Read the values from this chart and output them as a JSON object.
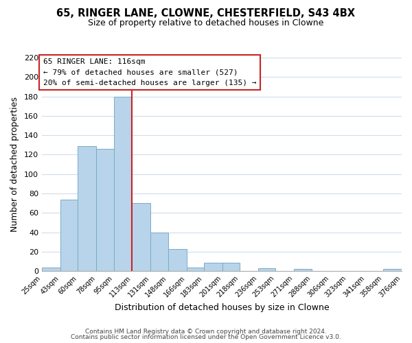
{
  "title": "65, RINGER LANE, CLOWNE, CHESTERFIELD, S43 4BX",
  "subtitle": "Size of property relative to detached houses in Clowne",
  "xlabel": "Distribution of detached houses by size in Clowne",
  "ylabel": "Number of detached properties",
  "bar_color": "#b8d4ea",
  "bar_edge_color": "#7aaac8",
  "vline_x": 113,
  "vline_color": "#cc2222",
  "bin_edges": [
    25,
    43,
    60,
    78,
    95,
    113,
    131,
    148,
    166,
    183,
    201,
    218,
    236,
    253,
    271,
    288,
    306,
    323,
    341,
    358,
    376
  ],
  "bar_heights": [
    4,
    74,
    129,
    126,
    180,
    70,
    40,
    23,
    4,
    9,
    9,
    0,
    3,
    0,
    2,
    0,
    0,
    0,
    0,
    2
  ],
  "tick_labels": [
    "25sqm",
    "43sqm",
    "60sqm",
    "78sqm",
    "95sqm",
    "113sqm",
    "131sqm",
    "148sqm",
    "166sqm",
    "183sqm",
    "201sqm",
    "218sqm",
    "236sqm",
    "253sqm",
    "271sqm",
    "288sqm",
    "306sqm",
    "323sqm",
    "341sqm",
    "358sqm",
    "376sqm"
  ],
  "ylim": [
    0,
    220
  ],
  "yticks": [
    0,
    20,
    40,
    60,
    80,
    100,
    120,
    140,
    160,
    180,
    200,
    220
  ],
  "annotation_title": "65 RINGER LANE: 116sqm",
  "annotation_line1": "← 79% of detached houses are smaller (527)",
  "annotation_line2": "20% of semi-detached houses are larger (135) →",
  "footer1": "Contains HM Land Registry data © Crown copyright and database right 2024.",
  "footer2": "Contains public sector information licensed under the Open Government Licence v3.0.",
  "background_color": "#ffffff",
  "grid_color": "#d0dcea"
}
